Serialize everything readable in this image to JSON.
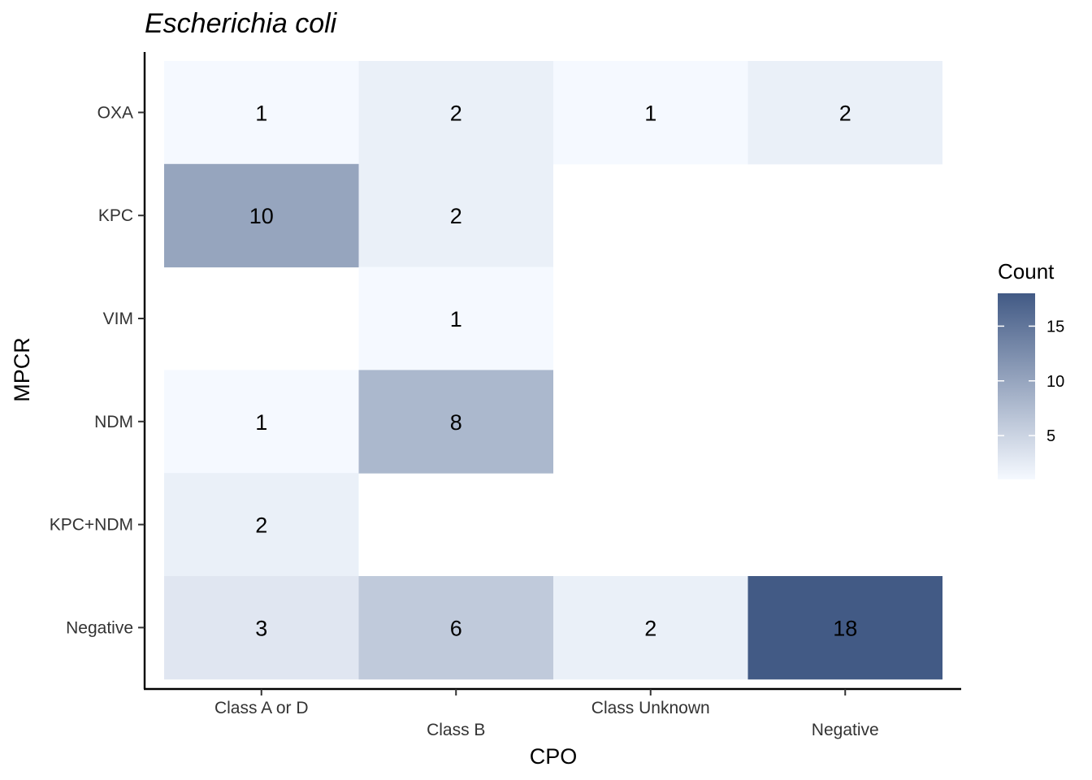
{
  "chart_data": {
    "type": "heatmap",
    "title": "Escherichia coli",
    "xlabel": "CPO",
    "ylabel": "MPCR",
    "x_categories": [
      "Class A or D",
      "Class B",
      "Class Unknown",
      "Negative"
    ],
    "y_categories": [
      "OXA",
      "KPC",
      "VIM",
      "NDM",
      "KPC+NDM",
      "Negative"
    ],
    "cells": [
      {
        "x": "Class A or D",
        "y": "OXA",
        "value": 1
      },
      {
        "x": "Class B",
        "y": "OXA",
        "value": 2
      },
      {
        "x": "Class Unknown",
        "y": "OXA",
        "value": 1
      },
      {
        "x": "Negative",
        "y": "OXA",
        "value": 2
      },
      {
        "x": "Class A or D",
        "y": "KPC",
        "value": 10
      },
      {
        "x": "Class B",
        "y": "KPC",
        "value": 2
      },
      {
        "x": "Class B",
        "y": "VIM",
        "value": 1
      },
      {
        "x": "Class A or D",
        "y": "NDM",
        "value": 1
      },
      {
        "x": "Class B",
        "y": "NDM",
        "value": 8
      },
      {
        "x": "Class A or D",
        "y": "KPC+NDM",
        "value": 2
      },
      {
        "x": "Class A or D",
        "y": "Negative",
        "value": 3
      },
      {
        "x": "Class B",
        "y": "Negative",
        "value": 6
      },
      {
        "x": "Class Unknown",
        "y": "Negative",
        "value": 2
      },
      {
        "x": "Negative",
        "y": "Negative",
        "value": 18
      }
    ],
    "legend": {
      "title": "Count",
      "ticks": [
        5,
        10,
        15
      ],
      "range": [
        1,
        18
      ],
      "placement": "right"
    },
    "colors": {
      "low": "#f5f9ff",
      "high": "#425a85"
    },
    "grid": false
  }
}
